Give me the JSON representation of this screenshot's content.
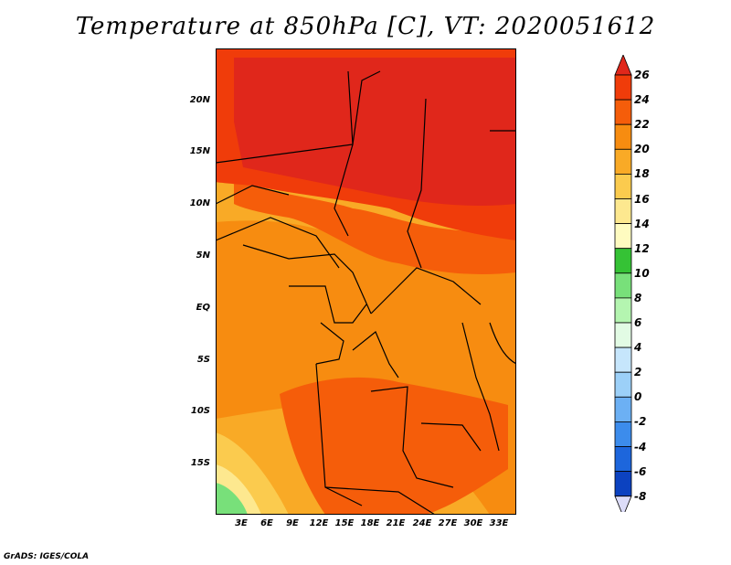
{
  "title": "Temperature at 850hPa [C], VT: 2020051612",
  "credit": "GrADS: IGES/COLA",
  "map": {
    "variable": "Temperature at 850hPa",
    "units": "C",
    "valid_time": "2020051612",
    "lat_ticks": [
      "20N",
      "15N",
      "10N",
      "5N",
      "EQ",
      "5S",
      "10S",
      "15S"
    ],
    "lon_ticks": [
      "3E",
      "6E",
      "9E",
      "12E",
      "15E",
      "18E",
      "21E",
      "24E",
      "27E",
      "30E",
      "33E"
    ]
  },
  "colorbar": {
    "labels": [
      "26",
      "24",
      "22",
      "20",
      "18",
      "16",
      "14",
      "12",
      "10",
      "8",
      "6",
      "4",
      "2",
      "0",
      "-2",
      "-4",
      "-6",
      "-8"
    ],
    "colors": {
      "above_26": "#e0271b",
      "24_26": "#f03c0a",
      "22_24": "#f55d0a",
      "20_22": "#f78c10",
      "18_20": "#f9aa26",
      "16_18": "#fbcb4e",
      "14_16": "#fde88f",
      "12_14": "#fefbc0",
      "10_12": "#35c235",
      "8_10": "#78e07a",
      "6_8": "#b4f5b0",
      "4_6": "#e2fbe4",
      "2_4": "#c6e6fc",
      "0_2": "#9cd0f8",
      "m2_0": "#6cb0f4",
      "m4_m2": "#3c8cec",
      "m6_m4": "#1d66dc",
      "m8_m6": "#0c42c0",
      "below_m8": "#061c7c",
      "bottom_cap": "#dcdcf8"
    }
  }
}
